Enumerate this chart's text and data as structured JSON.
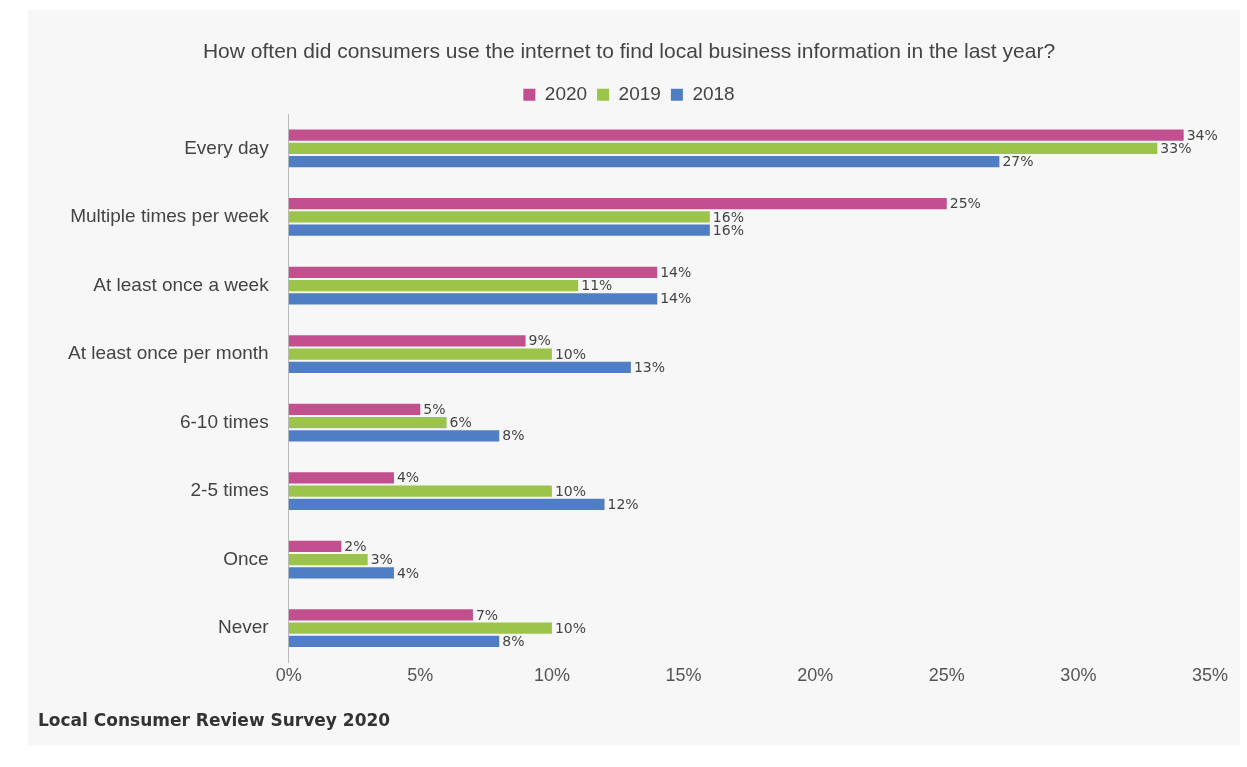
{
  "chart_data": {
    "type": "bar",
    "orientation": "horizontal",
    "title": "How often did consumers use the internet to find local business information in the last year?",
    "categories": [
      "Every day",
      "Multiple times per week",
      "At least once a week",
      "At least once per month",
      "6-10 times",
      "2-5 times",
      "Once",
      "Never"
    ],
    "series": [
      {
        "name": "2020",
        "color": "#c2508e",
        "values": [
          34,
          25,
          14,
          9,
          5,
          4,
          2,
          7
        ],
        "value_labels": [
          "34%",
          "25%",
          "14%",
          "9%",
          "5%",
          "4%",
          "2%",
          "7%"
        ]
      },
      {
        "name": "2019",
        "color": "#9dc44a",
        "values": [
          33,
          16,
          11,
          10,
          6,
          10,
          3,
          10
        ],
        "value_labels": [
          "33%",
          "16%",
          "11%",
          "10%",
          "6%",
          "10%",
          "3%",
          "10%"
        ]
      },
      {
        "name": "2018",
        "color": "#4f7ec4",
        "values": [
          27,
          16,
          14,
          13,
          8,
          12,
          4,
          8
        ],
        "value_labels": [
          "27%",
          "16%",
          "14%",
          "13%",
          "8%",
          "12%",
          "4%",
          "8%"
        ]
      }
    ],
    "xlim": [
      0,
      35
    ],
    "xticks": [
      {
        "value": 0,
        "label": "0%"
      },
      {
        "value": 5,
        "label": "5%"
      },
      {
        "value": 10,
        "label": "10%"
      },
      {
        "value": 15,
        "label": "15%"
      },
      {
        "value": 20,
        "label": "20%"
      },
      {
        "value": 25,
        "label": "25%"
      },
      {
        "value": 30,
        "label": "30%"
      },
      {
        "value": 35,
        "label": "35%"
      }
    ],
    "grid": false,
    "legend": "top",
    "annotations": [
      "Local Consumer Review Survey 2020"
    ]
  }
}
